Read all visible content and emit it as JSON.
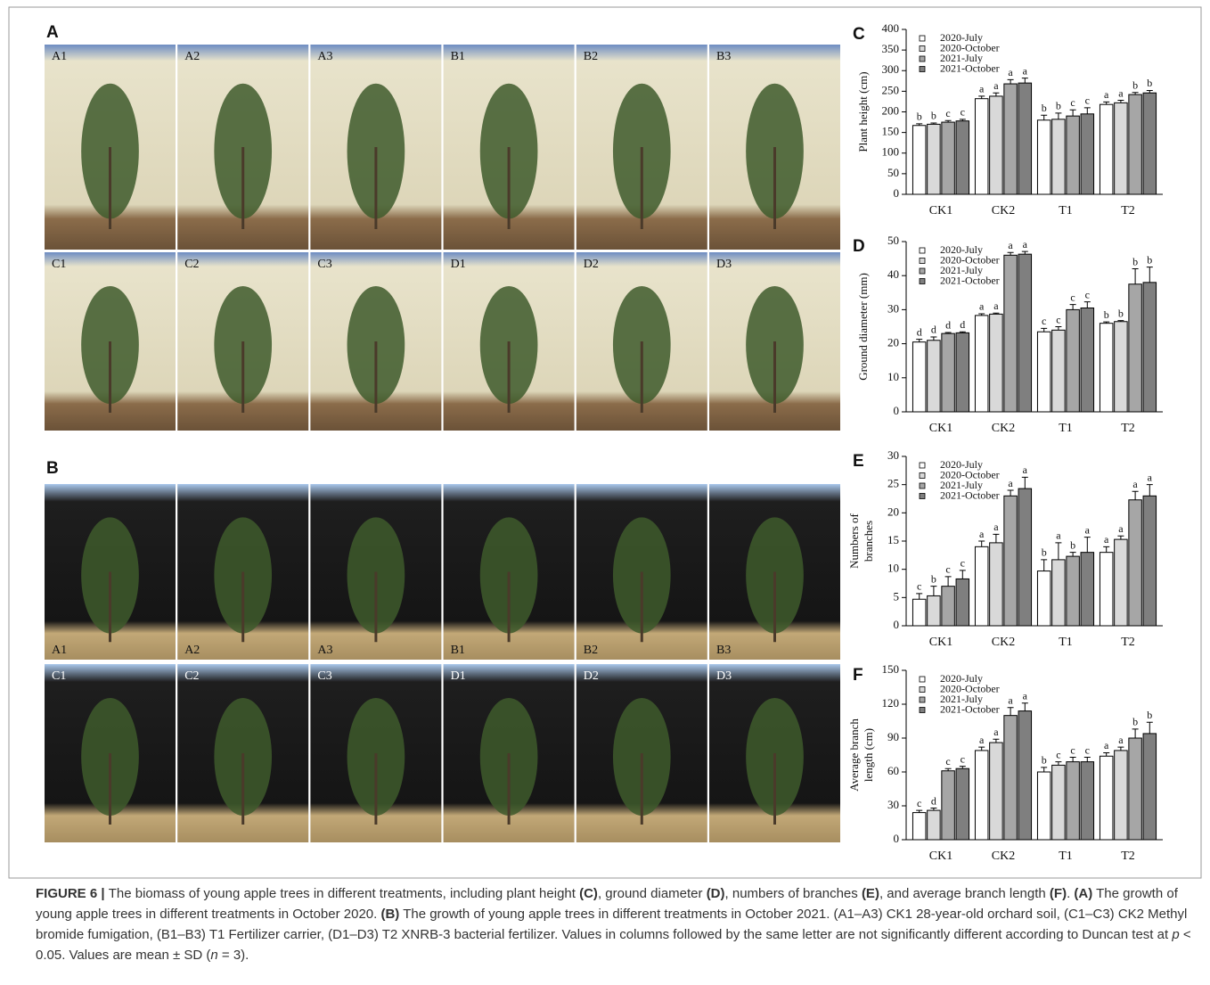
{
  "figure": {
    "panels": [
      {
        "label": "A",
        "rows": [
          [
            "A1",
            "A2",
            "A3",
            "B1",
            "B2",
            "B3"
          ],
          [
            "C1",
            "C2",
            "C3",
            "D1",
            "D2",
            "D3"
          ]
        ]
      },
      {
        "label": "B",
        "rows": [
          [
            "A1",
            "A2",
            "A3",
            "B1",
            "B2",
            "B3"
          ],
          [
            "C1",
            "C2",
            "C3",
            "D1",
            "D2",
            "D3"
          ]
        ]
      }
    ]
  },
  "chart_data": [
    {
      "type": "bar",
      "panel": "C",
      "ylabel": [
        "Plant height (cm)"
      ],
      "categories": [
        "CK1",
        "CK2",
        "T1",
        "T2"
      ],
      "ylim": [
        0,
        400
      ],
      "yticks": [
        0,
        50,
        100,
        150,
        200,
        250,
        300,
        350,
        400
      ],
      "series": [
        {
          "name": "2020-July",
          "color": "#ffffff",
          "values": [
            167,
            232,
            180,
            218
          ],
          "errors": [
            4,
            6,
            12,
            6
          ],
          "letters": [
            "b",
            "a",
            "b",
            "a"
          ]
        },
        {
          "name": "2020-October",
          "color": "#d9d9d9",
          "values": [
            170,
            238,
            182,
            222
          ],
          "errors": [
            3,
            8,
            15,
            6
          ],
          "letters": [
            "b",
            "a",
            "b",
            "a"
          ]
        },
        {
          "name": "2021-July",
          "color": "#a6a6a6",
          "values": [
            175,
            268,
            190,
            242
          ],
          "errors": [
            4,
            10,
            15,
            5
          ],
          "letters": [
            "c",
            "a",
            "c",
            "b"
          ]
        },
        {
          "name": "2021-October",
          "color": "#7f7f7f",
          "values": [
            178,
            270,
            195,
            246
          ],
          "errors": [
            4,
            12,
            15,
            6
          ],
          "letters": [
            "c",
            "a",
            "c",
            "b"
          ]
        }
      ]
    },
    {
      "type": "bar",
      "panel": "D",
      "ylabel": [
        "Ground diameter (mm)"
      ],
      "categories": [
        "CK1",
        "CK2",
        "T1",
        "T2"
      ],
      "ylim": [
        0,
        50
      ],
      "yticks": [
        0,
        10,
        20,
        30,
        40,
        50
      ],
      "series": [
        {
          "name": "2020-July",
          "color": "#ffffff",
          "values": [
            20.5,
            28.3,
            23.5,
            26
          ],
          "errors": [
            0.8,
            0.5,
            1,
            0.4
          ],
          "letters": [
            "d",
            "a",
            "c",
            "b"
          ]
        },
        {
          "name": "2020-October",
          "color": "#d9d9d9",
          "values": [
            21,
            28.7,
            24,
            26.5
          ],
          "errors": [
            1,
            0.3,
            1,
            0.3
          ],
          "letters": [
            "d",
            "a",
            "c",
            "b"
          ]
        },
        {
          "name": "2021-July",
          "color": "#a6a6a6",
          "values": [
            23,
            46,
            30,
            37.5
          ],
          "errors": [
            0.3,
            0.8,
            1.5,
            4.5
          ],
          "letters": [
            "d",
            "a",
            "c",
            "b"
          ]
        },
        {
          "name": "2021-October",
          "color": "#7f7f7f",
          "values": [
            23.2,
            46.3,
            30.5,
            38
          ],
          "errors": [
            0.3,
            0.8,
            1.8,
            4.5
          ],
          "letters": [
            "d",
            "a",
            "c",
            "b"
          ]
        }
      ]
    },
    {
      "type": "bar",
      "panel": "E",
      "ylabel": [
        "Numbers of",
        "branches"
      ],
      "categories": [
        "CK1",
        "CK2",
        "T1",
        "T2"
      ],
      "ylim": [
        0,
        30
      ],
      "yticks": [
        0,
        5,
        10,
        15,
        20,
        25,
        30
      ],
      "series": [
        {
          "name": "2020-July",
          "color": "#ffffff",
          "values": [
            4.7,
            14,
            9.7,
            13
          ],
          "errors": [
            1,
            1,
            2,
            1
          ],
          "letters": [
            "c",
            "a",
            "b",
            "a"
          ]
        },
        {
          "name": "2020-October",
          "color": "#d9d9d9",
          "values": [
            5.3,
            14.7,
            11.7,
            15.3
          ],
          "errors": [
            1.7,
            1.5,
            3,
            0.6
          ],
          "letters": [
            "b",
            "a",
            "a",
            "a"
          ]
        },
        {
          "name": "2021-July",
          "color": "#a6a6a6",
          "values": [
            7,
            23,
            12.3,
            22.3
          ],
          "errors": [
            1.7,
            1,
            0.7,
            1.5
          ],
          "letters": [
            "c",
            "a",
            "b",
            "a"
          ]
        },
        {
          "name": "2021-October",
          "color": "#7f7f7f",
          "values": [
            8.3,
            24.3,
            13,
            23
          ],
          "errors": [
            1.5,
            2,
            2.7,
            2
          ],
          "letters": [
            "c",
            "a",
            "a",
            "a"
          ]
        }
      ]
    },
    {
      "type": "bar",
      "panel": "F",
      "ylabel": [
        "Average branch",
        "length (cm)"
      ],
      "categories": [
        "CK1",
        "CK2",
        "T1",
        "T2"
      ],
      "ylim": [
        0,
        150
      ],
      "yticks": [
        0,
        30,
        60,
        90,
        120,
        150
      ],
      "series": [
        {
          "name": "2020-July",
          "color": "#ffffff",
          "values": [
            24,
            79,
            60,
            74
          ],
          "errors": [
            2,
            3,
            4,
            3
          ],
          "letters": [
            "c",
            "a",
            "b",
            "a"
          ]
        },
        {
          "name": "2020-October",
          "color": "#d9d9d9",
          "values": [
            26,
            86,
            66,
            79
          ],
          "errors": [
            2,
            3,
            3,
            3
          ],
          "letters": [
            "d",
            "a",
            "c",
            "a"
          ]
        },
        {
          "name": "2021-July",
          "color": "#a6a6a6",
          "values": [
            61,
            110,
            69,
            90
          ],
          "errors": [
            2,
            7,
            4,
            8
          ],
          "letters": [
            "c",
            "a",
            "c",
            "b"
          ]
        },
        {
          "name": "2021-October",
          "color": "#7f7f7f",
          "values": [
            63,
            114,
            69,
            94
          ],
          "errors": [
            2,
            7,
            4,
            10
          ],
          "letters": [
            "c",
            "a",
            "c",
            "b"
          ]
        }
      ]
    }
  ],
  "caption": [
    {
      "text": "FIGURE 6 | ",
      "style": "bold"
    },
    {
      "text": "The biomass of young apple trees in different treatments, including plant height "
    },
    {
      "text": "(C)",
      "style": "bold"
    },
    {
      "text": ", ground diameter "
    },
    {
      "text": "(D)",
      "style": "bold"
    },
    {
      "text": ", numbers of branches "
    },
    {
      "text": "(E)",
      "style": "bold"
    },
    {
      "text": ", and average branch length "
    },
    {
      "text": "(F)",
      "style": "bold"
    },
    {
      "text": ". "
    },
    {
      "text": "(A)",
      "style": "bold"
    },
    {
      "text": " The growth of young apple trees in different treatments in October 2020. "
    },
    {
      "text": "(B)",
      "style": "bold"
    },
    {
      "text": " The growth of young apple trees in different treatments in October 2021. (A1–A3) CK1 28-year-old orchard soil, (C1–C3) CK2 Methyl bromide fumigation, (B1–B3) T1 Fertilizer carrier, (D1–D3) T2 XNRB-3 bacterial fertilizer. Values in columns followed by the same letter are not significantly different according to Duncan test at "
    },
    {
      "text": "p",
      "style": "italic"
    },
    {
      "text": " < 0.05. Values are mean ± SD ("
    },
    {
      "text": "n",
      "style": "italic"
    },
    {
      "text": " = 3)."
    }
  ]
}
